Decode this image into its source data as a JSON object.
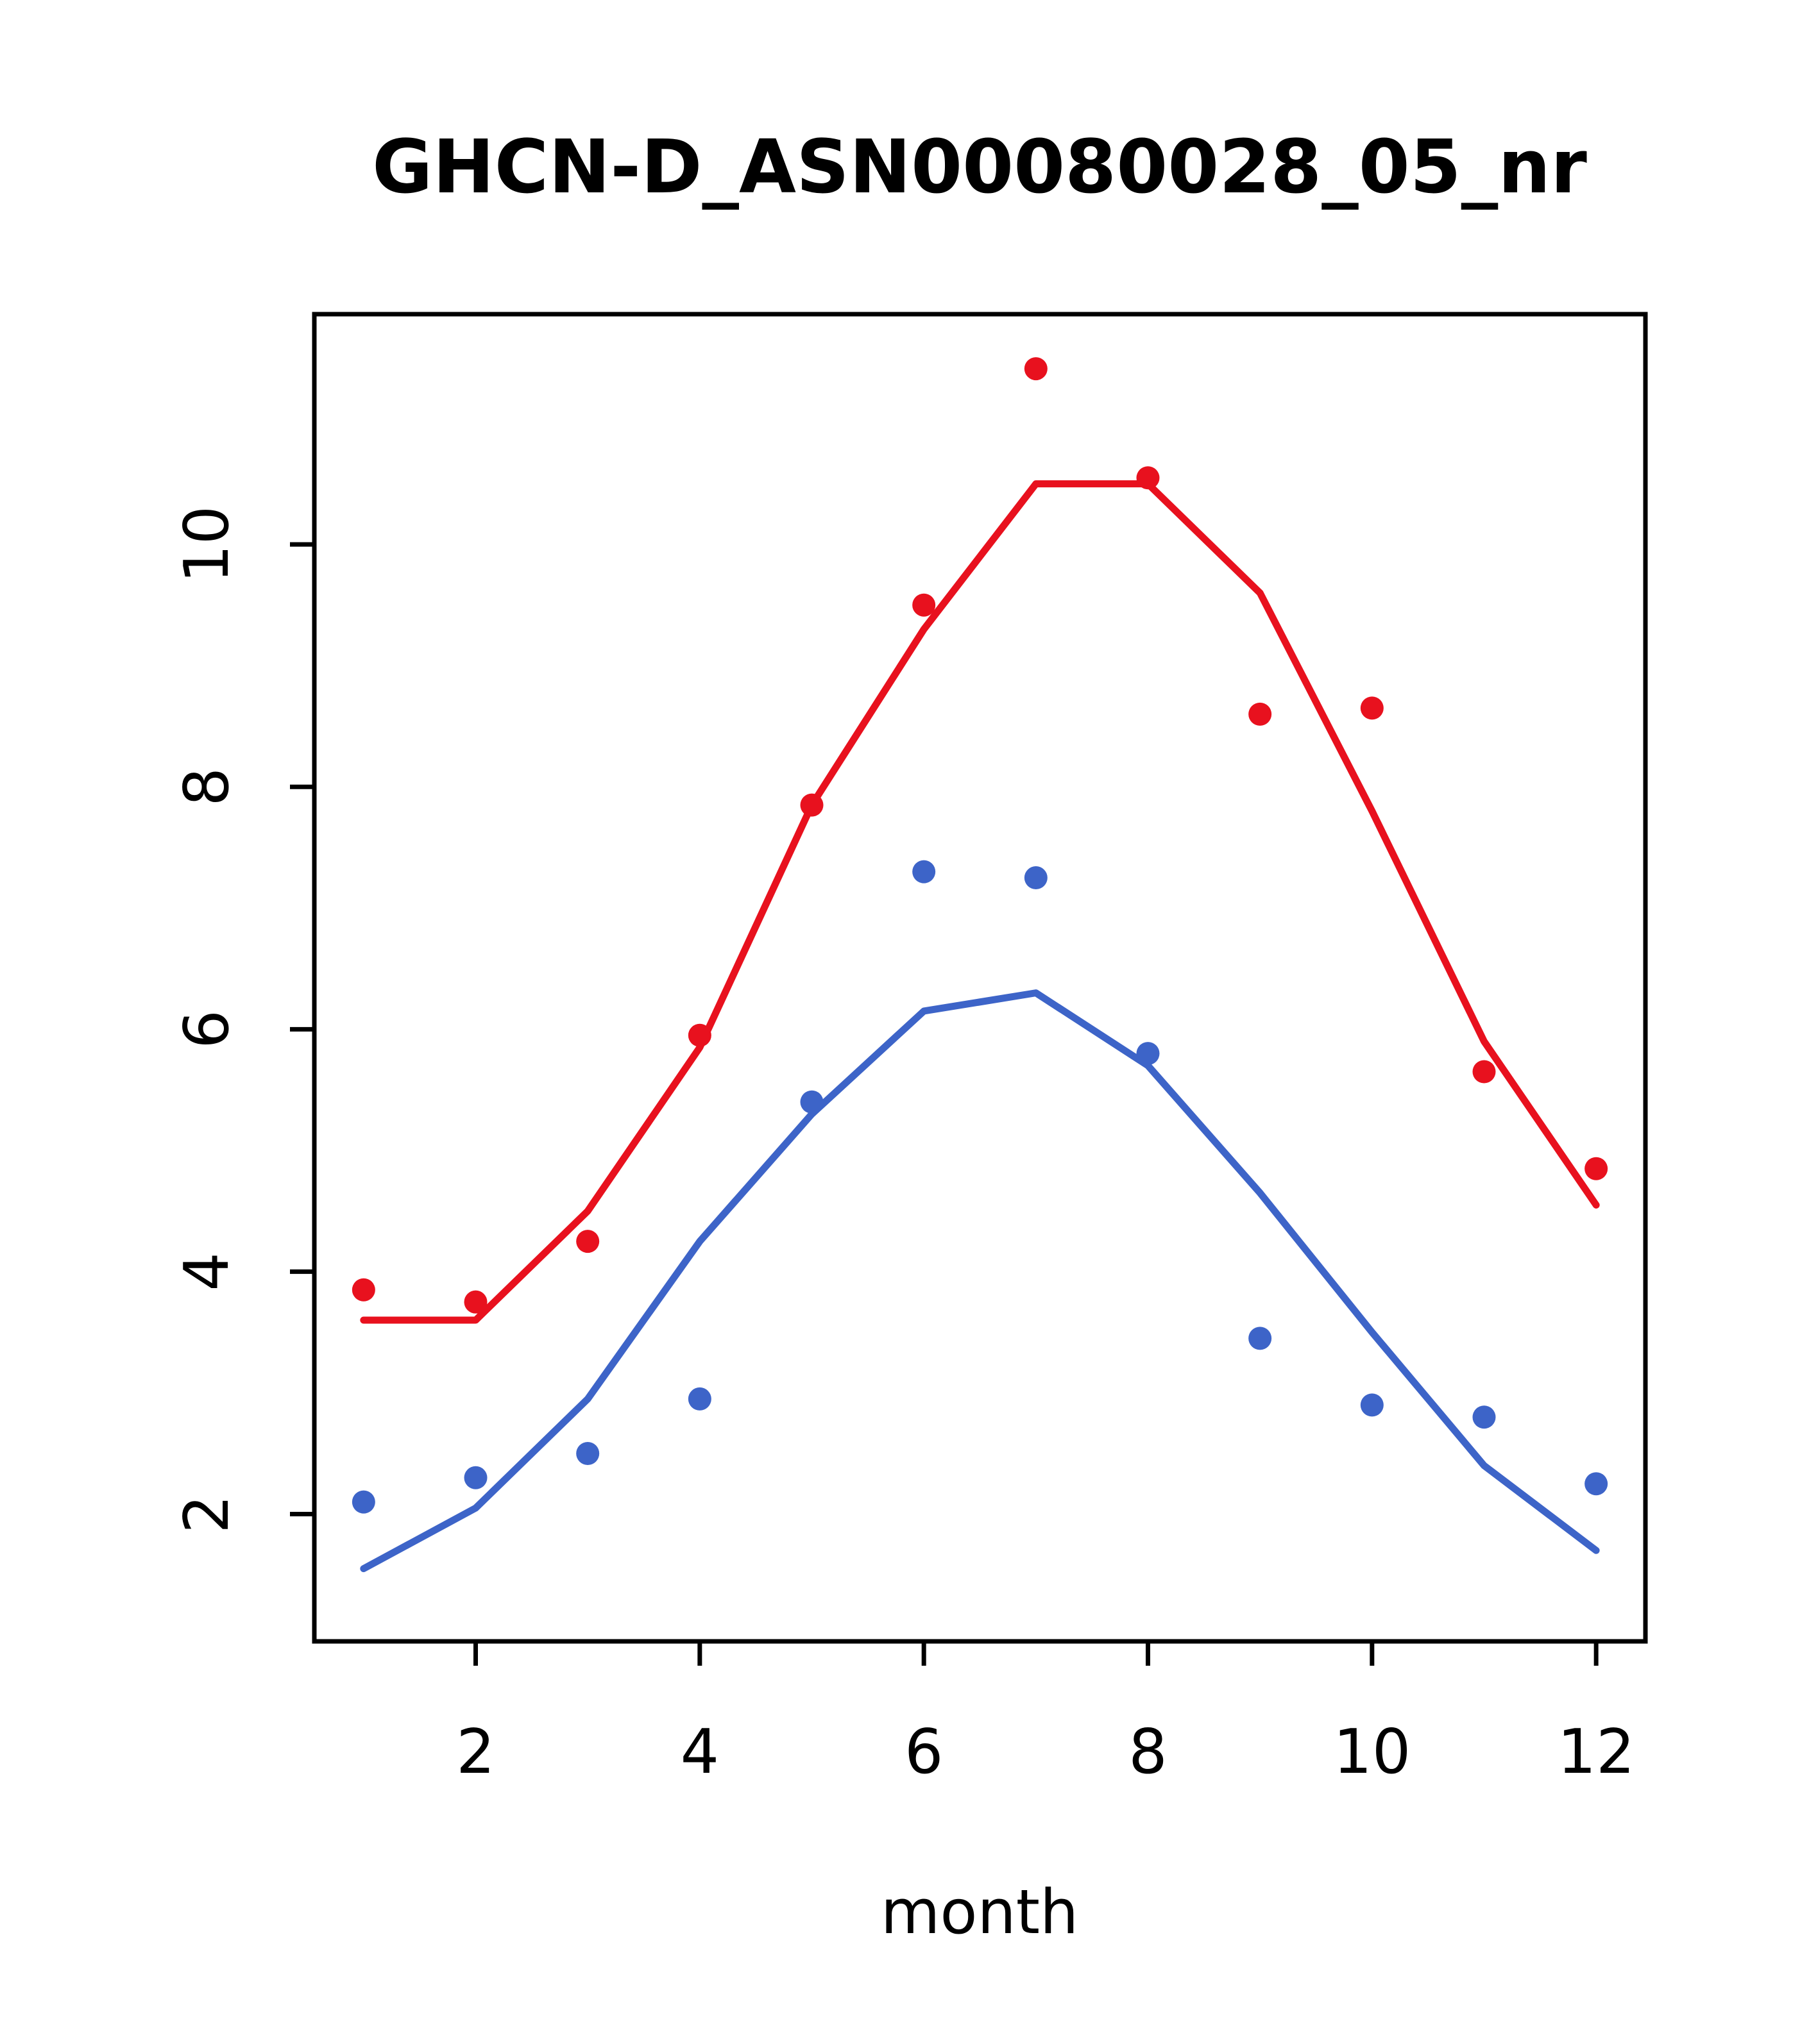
{
  "title": "GHCN-D_ASN00080028_05_nr",
  "chart_data": {
    "type": "scatter",
    "title": "GHCN-D_ASN00080028_05_nr",
    "xlabel": "month",
    "ylabel": "",
    "x": [
      1,
      2,
      3,
      4,
      5,
      6,
      7,
      8,
      9,
      10,
      11,
      12
    ],
    "xlim": [
      0.56,
      12.44
    ],
    "ylim": [
      0.95,
      11.9
    ],
    "x_ticks": [
      2,
      4,
      6,
      8,
      10,
      12
    ],
    "y_ticks": [
      2,
      4,
      6,
      8,
      10
    ],
    "grid": false,
    "legend": "none",
    "colors": {
      "red": "#e8111e",
      "blue": "#3d64c8",
      "axis": "#000000"
    },
    "series": [
      {
        "name": "red-points",
        "kind": "points",
        "color": "#e8111e",
        "values": [
          3.85,
          3.75,
          4.25,
          5.95,
          7.85,
          9.5,
          11.45,
          10.55,
          8.6,
          8.65,
          5.65,
          4.85
        ]
      },
      {
        "name": "red-line",
        "kind": "line",
        "color": "#e8111e",
        "values": [
          3.6,
          3.6,
          4.5,
          5.85,
          7.85,
          9.3,
          10.5,
          10.5,
          9.6,
          7.8,
          5.9,
          4.55
        ]
      },
      {
        "name": "blue-points",
        "kind": "points",
        "color": "#3d64c8",
        "values": [
          2.1,
          2.3,
          2.5,
          2.95,
          5.4,
          7.3,
          7.25,
          5.8,
          3.45,
          2.9,
          2.8,
          2.25
        ]
      },
      {
        "name": "blue-line",
        "kind": "line",
        "color": "#3d64c8",
        "values": [
          1.55,
          2.05,
          2.95,
          4.25,
          5.3,
          6.15,
          6.3,
          5.7,
          4.65,
          3.5,
          2.4,
          1.7
        ]
      }
    ]
  }
}
